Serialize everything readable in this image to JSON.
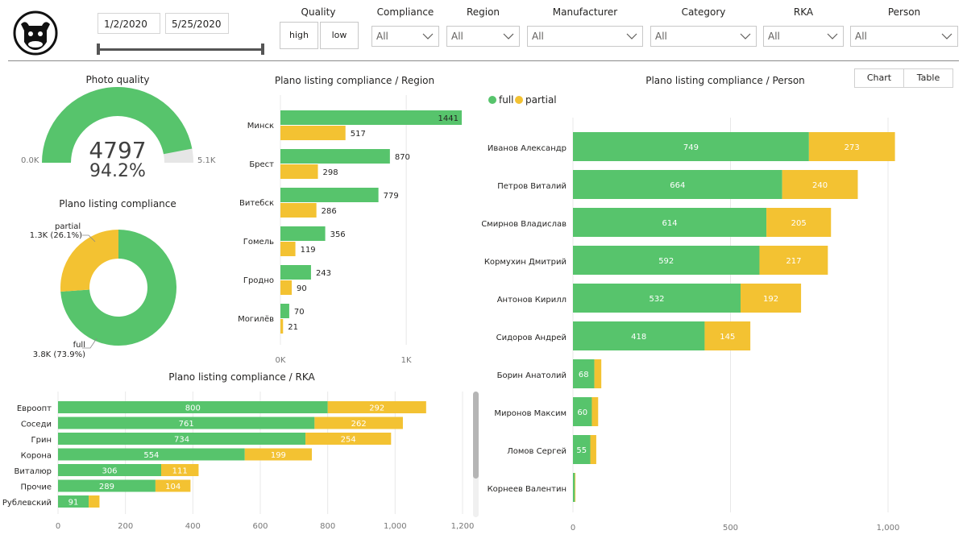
{
  "filters": {
    "date_start": "1/2/2020",
    "date_end": "5/25/2020",
    "quality": {
      "title": "Quality",
      "options": [
        "high",
        "low"
      ]
    },
    "dropdowns": [
      {
        "title": "Compliance",
        "value": "All"
      },
      {
        "title": "Region",
        "value": "All"
      },
      {
        "title": "Manufacturer",
        "value": "All"
      },
      {
        "title": "Category",
        "value": "All"
      },
      {
        "title": "RKA",
        "value": "All"
      },
      {
        "title": "Person",
        "value": "All"
      }
    ]
  },
  "colors": {
    "full": "#57c46c",
    "partial": "#f3c232",
    "track": "#e6e6e6",
    "grid": "#e8e8e8"
  },
  "photo_quality": {
    "title": "Photo quality",
    "value": "4797",
    "percent": "94.2%",
    "min_label": "0.0K",
    "max_label": "5.1K",
    "gauge_value": 4797,
    "gauge_max": 5100
  },
  "compliance_donut": {
    "title": "Plano listing compliance",
    "partial_name": "partial",
    "partial_label": "1.3K (26.1%)",
    "full_name": "full",
    "full_label": "3.8K (73.9%)",
    "partial_share": 0.261
  },
  "view_toggle": {
    "chart": "Chart",
    "table": "Table"
  },
  "chart_data": [
    {
      "type": "bar",
      "orientation": "horizontal",
      "title": "Plano listing compliance / Region",
      "categories": [
        "Минск",
        "Брест",
        "Витебск",
        "Гомель",
        "Гродно",
        "Могилёв"
      ],
      "series": [
        {
          "name": "full",
          "values": [
            1441,
            870,
            779,
            356,
            243,
            70
          ]
        },
        {
          "name": "partial",
          "values": [
            517,
            298,
            286,
            119,
            90,
            21
          ]
        }
      ],
      "xlim": [
        0,
        1441
      ],
      "xticks": [
        0,
        1000
      ],
      "xtick_labels": [
        "0K",
        "1K"
      ]
    },
    {
      "type": "bar",
      "orientation": "horizontal",
      "stacked": true,
      "title": "Plano listing compliance / RKA",
      "categories": [
        "Евроопт",
        "Соседи",
        "Грин",
        "Корона",
        "Виталюр",
        "Прочие",
        "Рублевский"
      ],
      "series": [
        {
          "name": "full",
          "values": [
            800,
            761,
            734,
            554,
            306,
            289,
            91
          ]
        },
        {
          "name": "partial",
          "values": [
            292,
            262,
            254,
            199,
            111,
            104,
            32
          ]
        }
      ],
      "xlim": [
        0,
        1200
      ],
      "xticks": [
        0,
        200,
        400,
        600,
        800,
        1000,
        1200
      ],
      "xtick_labels": [
        "0",
        "200",
        "400",
        "600",
        "800",
        "1,000",
        "1,200"
      ]
    },
    {
      "type": "bar",
      "orientation": "horizontal",
      "stacked": true,
      "title": "Plano listing compliance / Person",
      "legend": [
        "full",
        "partial"
      ],
      "legend_position": "top-left",
      "categories": [
        "Иванов Александр",
        "Петров Виталий",
        "Смирнов Владислав",
        "Кормухин Дмитрий",
        "Антонов Кирилл",
        "Сидоров Андрей",
        "Борин Анатолий",
        "Миронов Максим",
        "Ломов Сергей",
        "Корнеев Валентин"
      ],
      "series": [
        {
          "name": "full",
          "values": [
            749,
            664,
            614,
            592,
            532,
            418,
            68,
            60,
            55,
            6
          ]
        },
        {
          "name": "partial",
          "values": [
            273,
            240,
            205,
            217,
            192,
            145,
            22,
            20,
            19,
            2
          ]
        }
      ],
      "value_labels_full": [
        "749",
        "664",
        "614",
        "592",
        "532",
        "418",
        "68",
        "60",
        "55",
        ""
      ],
      "value_labels_partial": [
        "273",
        "240",
        "205",
        "217",
        "192",
        "145",
        "",
        "",
        "",
        ""
      ],
      "xlim": [
        0,
        1000
      ],
      "xticks": [
        0,
        500,
        1000
      ],
      "xtick_labels": [
        "0",
        "500",
        "1,000"
      ]
    }
  ]
}
